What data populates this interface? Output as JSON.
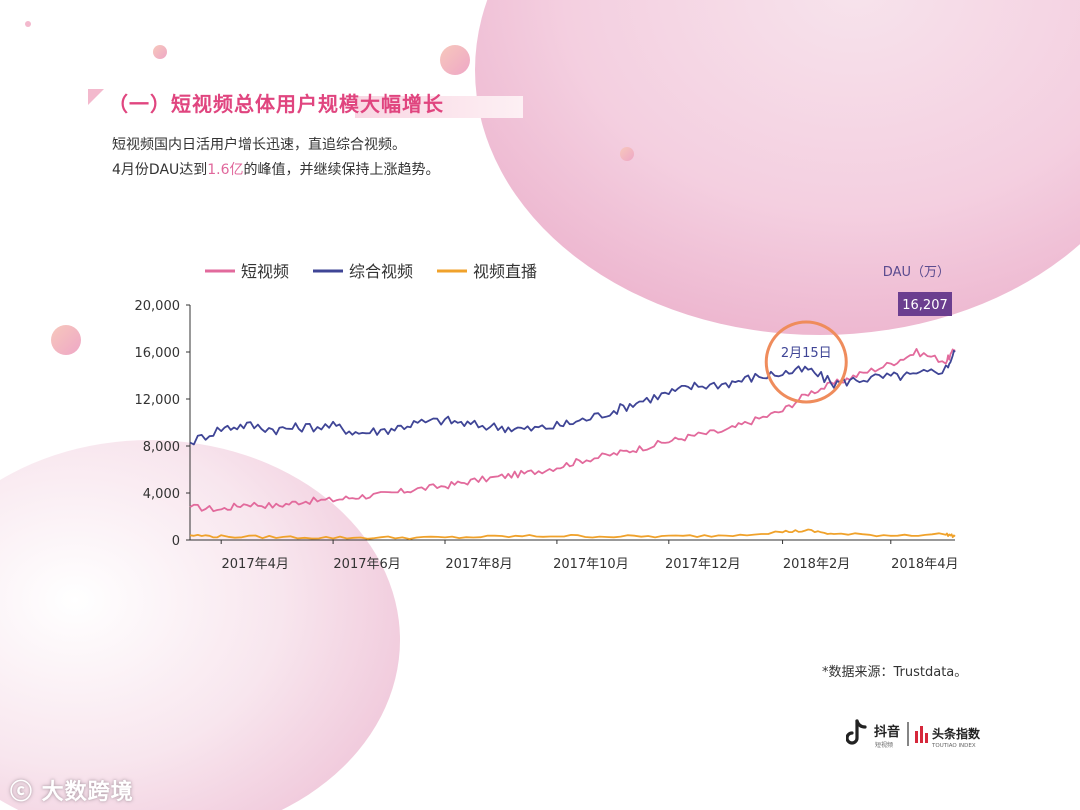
{
  "section_title": "（一）短视频总体用户规模大幅增长",
  "desc_line1": "短视频国内日活用户增长迅速，直追综合视频。",
  "desc_line2_pre": "4月份DAU达到",
  "desc_line2_hl": "1.6亿",
  "desc_line2_post": "的峰值，并继续保持上涨趋势。",
  "source": "*数据来源：Trustdata。",
  "logo_left": "抖音",
  "logo_left_sub": "短视频",
  "logo_right": "头条指数",
  "logo_right_sub": "TOUTIAO INDEX",
  "watermark": "大数跨境",
  "colors": {
    "accent": "#e0457f",
    "short_video": "#e26a9c",
    "general_video": "#3f4596",
    "live_video": "#f0a22b",
    "peak_badge": "#6b3e8f",
    "annotation_circle": "#ef8c5c"
  },
  "chart_data": {
    "type": "line",
    "ylabel": "DAU（万）",
    "ylim": [
      0,
      20000
    ],
    "yticks": [
      "0",
      "4,000",
      "8,000",
      "12,000",
      "16,000",
      "20,000"
    ],
    "ytick_values": [
      0,
      4000,
      8000,
      12000,
      16000,
      20000
    ],
    "xtick_labels": [
      "2017年4月",
      "2017年6月",
      "2017年8月",
      "2017年10月",
      "2017年12月",
      "2018年2月",
      "2018年4月"
    ],
    "x_start": "2017-03-15",
    "x_end": "2018-05-06",
    "xtick_dates": [
      "2017-04-01",
      "2017-06-01",
      "2017-08-01",
      "2017-10-01",
      "2017-12-01",
      "2018-02-01",
      "2018-04-01"
    ],
    "legend_position": "top-left",
    "peak_label": "16,207",
    "annotation": {
      "label": "2月15日",
      "date": "2018-02-15"
    },
    "series": [
      {
        "name": "短视频",
        "key": "short_video",
        "x": [
          "2017-03-15",
          "2017-04-01",
          "2017-04-15",
          "2017-05-01",
          "2017-05-15",
          "2017-06-01",
          "2017-06-15",
          "2017-07-01",
          "2017-07-15",
          "2017-08-01",
          "2017-08-15",
          "2017-09-01",
          "2017-09-15",
          "2017-10-01",
          "2017-10-15",
          "2017-11-01",
          "2017-11-15",
          "2017-12-01",
          "2017-12-15",
          "2018-01-01",
          "2018-01-15",
          "2018-02-01",
          "2018-02-15",
          "2018-03-01",
          "2018-03-15",
          "2018-04-01",
          "2018-04-15",
          "2018-05-01",
          "2018-05-06"
        ],
        "values": [
          2800,
          2600,
          3100,
          2900,
          3300,
          3400,
          3700,
          3900,
          4300,
          4600,
          5000,
          5400,
          5700,
          6200,
          6800,
          7300,
          7800,
          8400,
          8900,
          9300,
          10100,
          11000,
          12500,
          13300,
          14100,
          15000,
          16000,
          15200,
          16207
        ]
      },
      {
        "name": "综合视频",
        "key": "general_video",
        "x": [
          "2017-03-15",
          "2017-04-01",
          "2017-04-15",
          "2017-05-01",
          "2017-05-15",
          "2017-06-01",
          "2017-06-15",
          "2017-07-01",
          "2017-07-15",
          "2017-08-01",
          "2017-08-15",
          "2017-09-01",
          "2017-09-15",
          "2017-10-01",
          "2017-10-15",
          "2017-11-01",
          "2017-11-15",
          "2017-12-01",
          "2017-12-15",
          "2018-01-01",
          "2018-01-15",
          "2018-02-01",
          "2018-02-15",
          "2018-03-01",
          "2018-03-15",
          "2018-04-01",
          "2018-04-15",
          "2018-05-01",
          "2018-05-06"
        ],
        "values": [
          8300,
          9500,
          9800,
          9400,
          9600,
          9700,
          9100,
          9400,
          9900,
          10200,
          9800,
          9600,
          9400,
          9700,
          10200,
          11000,
          11800,
          12500,
          13100,
          13300,
          13800,
          14200,
          14500,
          13300,
          13700,
          13900,
          14000,
          14600,
          16000
        ]
      },
      {
        "name": "视频直播",
        "key": "live_video",
        "x": [
          "2017-03-15",
          "2017-04-01",
          "2017-05-01",
          "2017-06-01",
          "2017-07-01",
          "2017-08-01",
          "2017-09-01",
          "2017-10-01",
          "2017-11-01",
          "2017-12-01",
          "2018-01-01",
          "2018-02-01",
          "2018-02-15",
          "2018-03-01",
          "2018-04-01",
          "2018-05-01",
          "2018-05-06"
        ],
        "values": [
          400,
          300,
          250,
          200,
          200,
          200,
          300,
          350,
          300,
          300,
          400,
          700,
          800,
          500,
          400,
          500,
          300
        ]
      }
    ]
  }
}
